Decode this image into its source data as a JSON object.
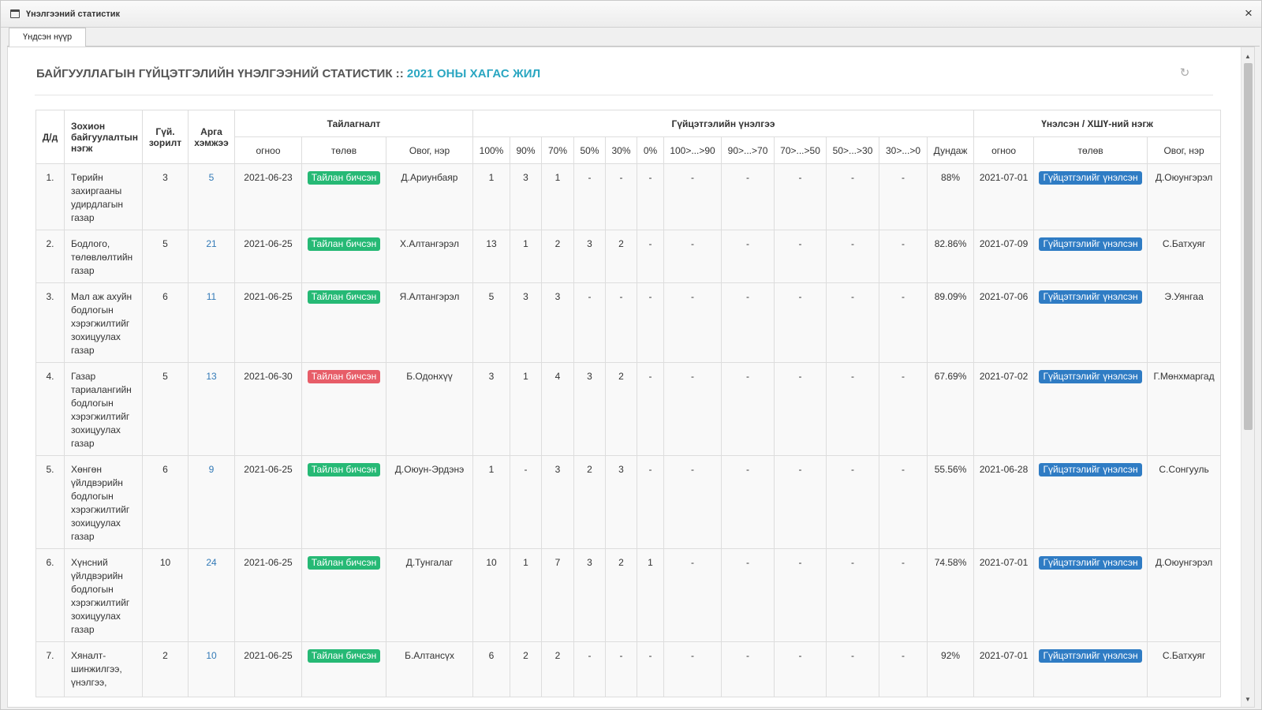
{
  "window": {
    "title": "Үнэлгээний статистик",
    "close_symbol": "×"
  },
  "tabs": [
    {
      "label": "Үндсэн нүүр"
    }
  ],
  "header": {
    "title": "БАЙГУУЛЛАГЫН ГҮЙЦЭТГЭЛИЙН ҮНЭЛГЭЭНИЙ СТАТИСТИК",
    "separator": "::",
    "period": "2021 ОНЫ ХАГАС ЖИЛ",
    "refresh_icon": "refresh-icon"
  },
  "table": {
    "group_headers": {
      "index": "Д/д",
      "org": "Зохион байгуулалтын нэгж",
      "goal": "Гүй. зорилт",
      "measures": "Арга хэмжээ",
      "report": "Тайлагналт",
      "perf": "Гүйцэтгэлийн үнэлгээ",
      "evaluator": "Үнэлсэн / ХШҮ-ний нэгж"
    },
    "sub_headers": [
      "огноо",
      "төлөв",
      "Овог, нэр",
      "100%",
      "90%",
      "70%",
      "50%",
      "30%",
      "0%",
      "100>...>90",
      "90>...>70",
      "70>...>50",
      "50>...>30",
      "30>...>0",
      "Дундаж",
      "огноо",
      "төлөв",
      "Овог, нэр"
    ],
    "rows": [
      {
        "idx": "1.",
        "org": "Төрийн захиргааны удирдлагын газар",
        "goal": "3",
        "measures": "5",
        "report_date": "2021-06-23",
        "report_status": "Тайлан бичсэн",
        "report_status_color": "green",
        "reporter": "Д.Ариунбаяр",
        "p100": "1",
        "p90": "3",
        "p70": "1",
        "p50": "-",
        "p30": "-",
        "p0": "-",
        "r1": "-",
        "r2": "-",
        "r3": "-",
        "r4": "-",
        "r5": "-",
        "avg": "88%",
        "eval_date": "2021-07-01",
        "eval_status": "Гүйцэтгэлийг үнэлсэн",
        "evaluator": "Д.Оюунгэрэл"
      },
      {
        "idx": "2.",
        "org": "Бодлого, төлөвлөлтийн газар",
        "goal": "5",
        "measures": "21",
        "report_date": "2021-06-25",
        "report_status": "Тайлан бичсэн",
        "report_status_color": "green",
        "reporter": "Х.Алтангэрэл",
        "p100": "13",
        "p90": "1",
        "p70": "2",
        "p50": "3",
        "p30": "2",
        "p0": "-",
        "r1": "-",
        "r2": "-",
        "r3": "-",
        "r4": "-",
        "r5": "-",
        "avg": "82.86%",
        "eval_date": "2021-07-09",
        "eval_status": "Гүйцэтгэлийг үнэлсэн",
        "evaluator": "С.Батхуяг"
      },
      {
        "idx": "3.",
        "org": "Мал аж ахуйн бодлогын хэрэгжилтийг зохицуулах газар",
        "goal": "6",
        "measures": "11",
        "report_date": "2021-06-25",
        "report_status": "Тайлан бичсэн",
        "report_status_color": "green",
        "reporter": "Я.Алтангэрэл",
        "p100": "5",
        "p90": "3",
        "p70": "3",
        "p50": "-",
        "p30": "-",
        "p0": "-",
        "r1": "-",
        "r2": "-",
        "r3": "-",
        "r4": "-",
        "r5": "-",
        "avg": "89.09%",
        "eval_date": "2021-07-06",
        "eval_status": "Гүйцэтгэлийг үнэлсэн",
        "evaluator": "Э.Уянгаа"
      },
      {
        "idx": "4.",
        "org": "Газар тариалангийн бодлогын хэрэгжилтийг зохицуулах газар",
        "goal": "5",
        "measures": "13",
        "report_date": "2021-06-30",
        "report_status": "Тайлан бичсэн",
        "report_status_color": "red",
        "reporter": "Б.Одонхүү",
        "p100": "3",
        "p90": "1",
        "p70": "4",
        "p50": "3",
        "p30": "2",
        "p0": "-",
        "r1": "-",
        "r2": "-",
        "r3": "-",
        "r4": "-",
        "r5": "-",
        "avg": "67.69%",
        "eval_date": "2021-07-02",
        "eval_status": "Гүйцэтгэлийг үнэлсэн",
        "evaluator": "Г.Мөнхмаргад"
      },
      {
        "idx": "5.",
        "org": "Хөнгөн үйлдвэрийн бодлогын хэрэгжилтийг зохицуулах газар",
        "goal": "6",
        "measures": "9",
        "report_date": "2021-06-25",
        "report_status": "Тайлан бичсэн",
        "report_status_color": "green",
        "reporter": "Д.Оюун-Эрдэнэ",
        "p100": "1",
        "p90": "-",
        "p70": "3",
        "p50": "2",
        "p30": "3",
        "p0": "-",
        "r1": "-",
        "r2": "-",
        "r3": "-",
        "r4": "-",
        "r5": "-",
        "avg": "55.56%",
        "eval_date": "2021-06-28",
        "eval_status": "Гүйцэтгэлийг үнэлсэн",
        "evaluator": "С.Сонгууль"
      },
      {
        "idx": "6.",
        "org": "Хүнсний үйлдвэрийн бодлогын хэрэгжилтийг зохицуулах газар",
        "goal": "10",
        "measures": "24",
        "report_date": "2021-06-25",
        "report_status": "Тайлан бичсэн",
        "report_status_color": "green",
        "reporter": "Д.Тунгалаг",
        "p100": "10",
        "p90": "1",
        "p70": "7",
        "p50": "3",
        "p30": "2",
        "p0": "1",
        "r1": "-",
        "r2": "-",
        "r3": "-",
        "r4": "-",
        "r5": "-",
        "avg": "74.58%",
        "eval_date": "2021-07-01",
        "eval_status": "Гүйцэтгэлийг үнэлсэн",
        "evaluator": "Д.Оюунгэрэл"
      },
      {
        "idx": "7.",
        "org": "Хяналт-шинжилгээ, үнэлгээ,",
        "goal": "2",
        "measures": "10",
        "report_date": "2021-06-25",
        "report_status": "Тайлан бичсэн",
        "report_status_color": "green",
        "reporter": "Б.Алтансүх",
        "p100": "6",
        "p90": "2",
        "p70": "2",
        "p50": "-",
        "p30": "-",
        "p0": "-",
        "r1": "-",
        "r2": "-",
        "r3": "-",
        "r4": "-",
        "r5": "-",
        "avg": "92%",
        "eval_date": "2021-07-01",
        "eval_status": "Гүйцэтгэлийг үнэлсэн",
        "evaluator": "С.Батхуяг"
      }
    ]
  },
  "colors": {
    "accent": "#2aa6c1",
    "badge_green": "#26b975",
    "badge_red": "#e75d68",
    "badge_blue": "#2f7cc4",
    "link": "#337ab7"
  }
}
